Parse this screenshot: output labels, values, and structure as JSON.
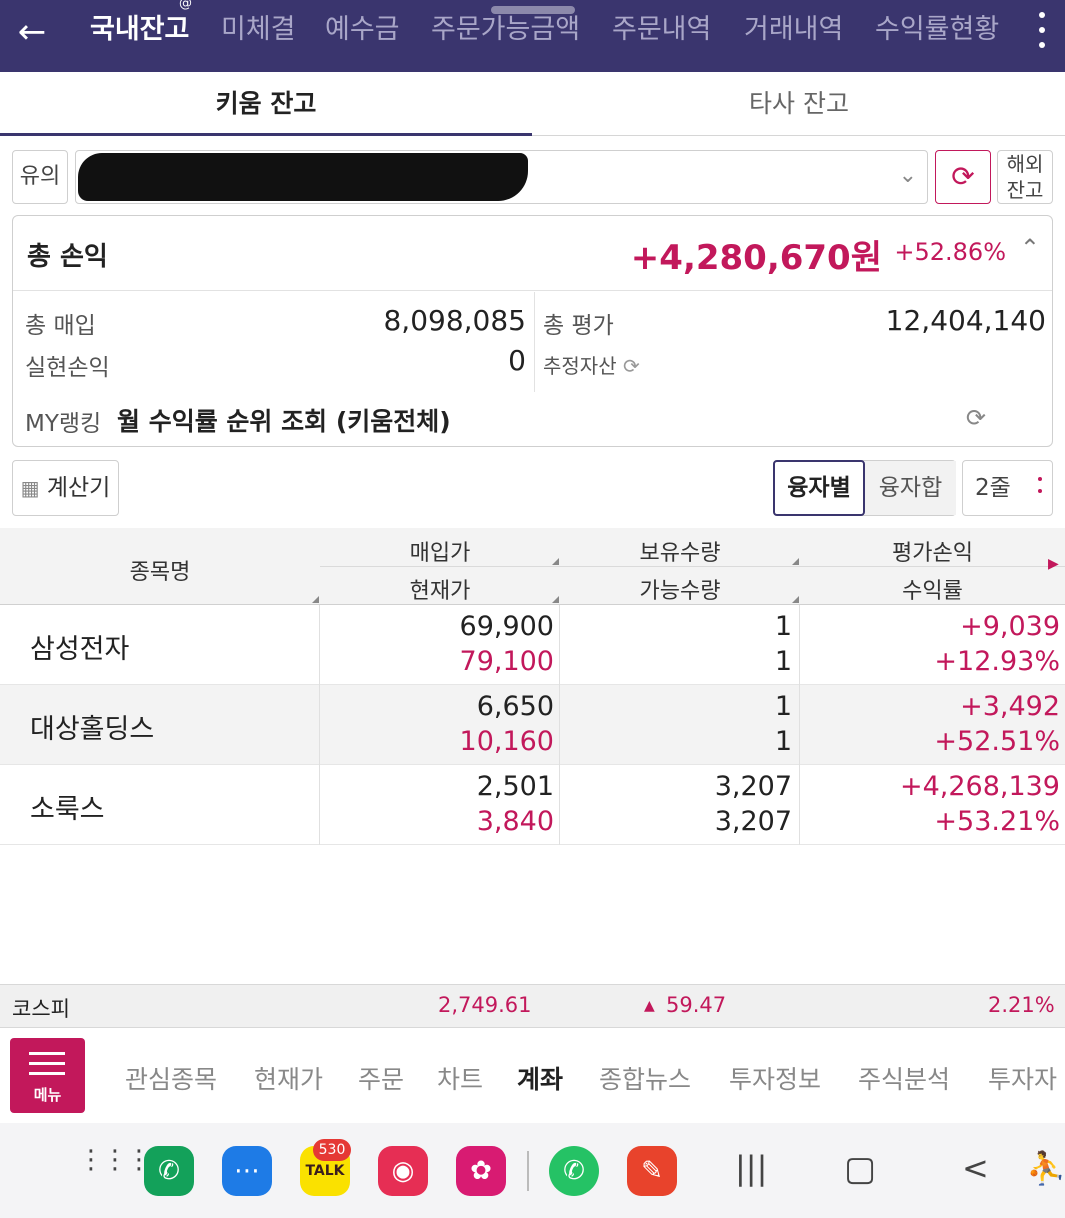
{
  "topnav": {
    "back_icon": "arrow-left-icon",
    "tabs": [
      "국내잔고",
      "미체결",
      "예수금",
      "주문가능금액",
      "주문내역",
      "거래내역",
      "수익률현황"
    ],
    "active_tab": "국내잔고"
  },
  "subtabs": [
    "키움 잔고",
    "타사 잔고"
  ],
  "account": {
    "warning_label": "유의",
    "overseas_label_1": "해외",
    "overseas_label_2": "잔고"
  },
  "summary": {
    "total_pl_label": "총 손익",
    "total_pl_value": "+4,280,670원",
    "total_pl_pct": "+52.86%",
    "total_buy_label": "총 매입",
    "total_buy_value": "8,098,085",
    "total_eval_label": "총 평가",
    "total_eval_value": "12,404,140",
    "realized_label": "실현손익",
    "realized_value": "0",
    "est_assets_label": "추정자산",
    "myrank_label": "MY랭킹",
    "myrank_value": "월 수익률 순위 조회 (키움전체)"
  },
  "controls": {
    "calc_label": "계산기",
    "seg_1": "융자별",
    "seg_2": "융자합",
    "rows_label": "2줄"
  },
  "table": {
    "headers": {
      "name": "종목명",
      "buy_price": "매입가",
      "current_price": "현재가",
      "holding_qty": "보유수량",
      "available_qty": "가능수량",
      "eval_pl": "평가손익",
      "return_rate": "수익률"
    },
    "rows": [
      {
        "name": "삼성전자",
        "buy_price": "69,900",
        "current_price": "79,100",
        "holding_qty": "1",
        "available_qty": "1",
        "eval_pl": "+9,039",
        "return_rate": "+12.93%"
      },
      {
        "name": "대상홀딩스",
        "buy_price": "6,650",
        "current_price": "10,160",
        "holding_qty": "1",
        "available_qty": "1",
        "eval_pl": "+3,492",
        "return_rate": "+52.51%"
      },
      {
        "name": "소룩스",
        "buy_price": "2,501",
        "current_price": "3,840",
        "holding_qty": "3,207",
        "available_qty": "3,207",
        "eval_pl": "+4,268,139",
        "return_rate": "+53.21%"
      }
    ]
  },
  "kospi": {
    "name": "코스피",
    "value": "2,749.61",
    "change": "59.47",
    "change_pct": "2.21%"
  },
  "bottom_menu": {
    "menu_label": "메뉴",
    "items": [
      "관심종목",
      "현재가",
      "주문",
      "차트",
      "계좌",
      "종합뉴스",
      "투자정보",
      "주식분석",
      "투자자"
    ],
    "active": "계좌"
  },
  "system_bar": {
    "talk_badge": "530",
    "talk_label": "TALK"
  },
  "colors": {
    "header_bg": "#3a356e",
    "accent_pink": "#c2185b"
  }
}
